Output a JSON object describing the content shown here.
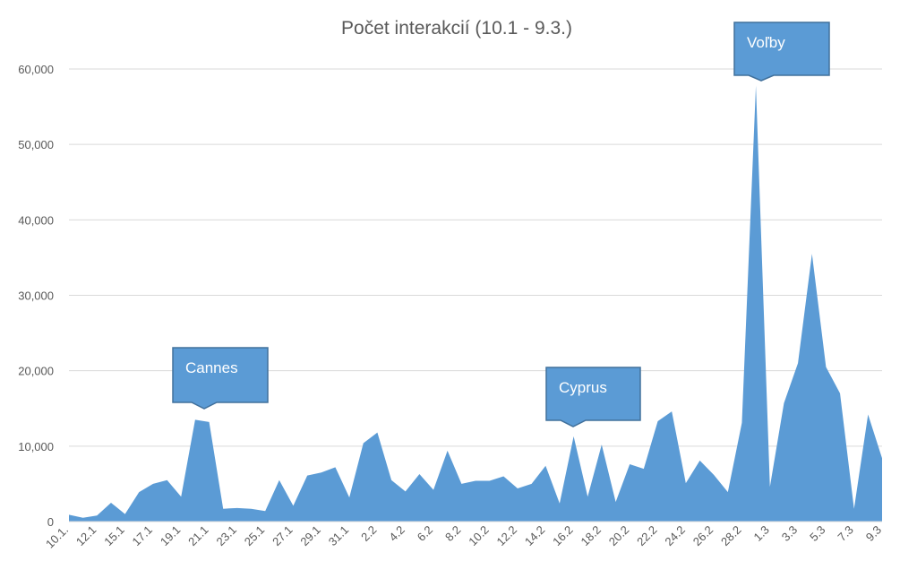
{
  "chart_data": {
    "type": "area",
    "title": "Počet interakcií (10.1 - 9.3.)",
    "categories": [
      "10.1.",
      null,
      "12.1",
      null,
      "15.1",
      null,
      "17.1",
      null,
      "19.1",
      null,
      "21.1",
      null,
      "23.1",
      null,
      "25.1",
      null,
      "27.1",
      null,
      "29.1",
      null,
      "31.1",
      null,
      "2.2",
      null,
      "4.2",
      null,
      "6.2",
      null,
      "8.2",
      null,
      "10.2",
      null,
      "12.2",
      null,
      "14.2",
      null,
      "16.2",
      null,
      "18.2",
      null,
      "20.2",
      null,
      "22.2",
      null,
      "24.2",
      null,
      "26.2",
      null,
      "28.2",
      null,
      "1.3",
      null,
      "3.3",
      null,
      "5.3",
      null,
      "7.3",
      null,
      "9.3"
    ],
    "values": [
      900,
      500,
      800,
      2500,
      1000,
      3900,
      5000,
      5500,
      3300,
      13500,
      13200,
      1700,
      1800,
      1700,
      1400,
      5500,
      2100,
      6100,
      6500,
      7200,
      3200,
      10400,
      11800,
      5500,
      4000,
      6300,
      4200,
      9400,
      5000,
      5400,
      5400,
      6000,
      4400,
      5000,
      7400,
      2400,
      11300,
      3300,
      10200,
      2600,
      7600,
      7000,
      13300,
      14600,
      5100,
      8100,
      6200,
      3900,
      13100,
      57800,
      4600,
      15700,
      21000,
      35500,
      20500,
      17000,
      1700,
      14200,
      8400
    ],
    "color": "#5b9bd5",
    "ylim": [
      0,
      60000
    ],
    "yticks": [
      0,
      {
        "value": 10000,
        "label": "10,000"
      },
      {
        "value": 20000,
        "label": "20,000"
      },
      {
        "value": 30000,
        "label": "30,000"
      },
      {
        "value": 40000,
        "label": "40,000"
      },
      {
        "value": 50000,
        "label": "50,000"
      },
      {
        "value": 60000,
        "label": "60,000"
      }
    ],
    "grid": true,
    "annotations": [
      "Cannes",
      "Cyprus",
      "Voľby"
    ]
  }
}
